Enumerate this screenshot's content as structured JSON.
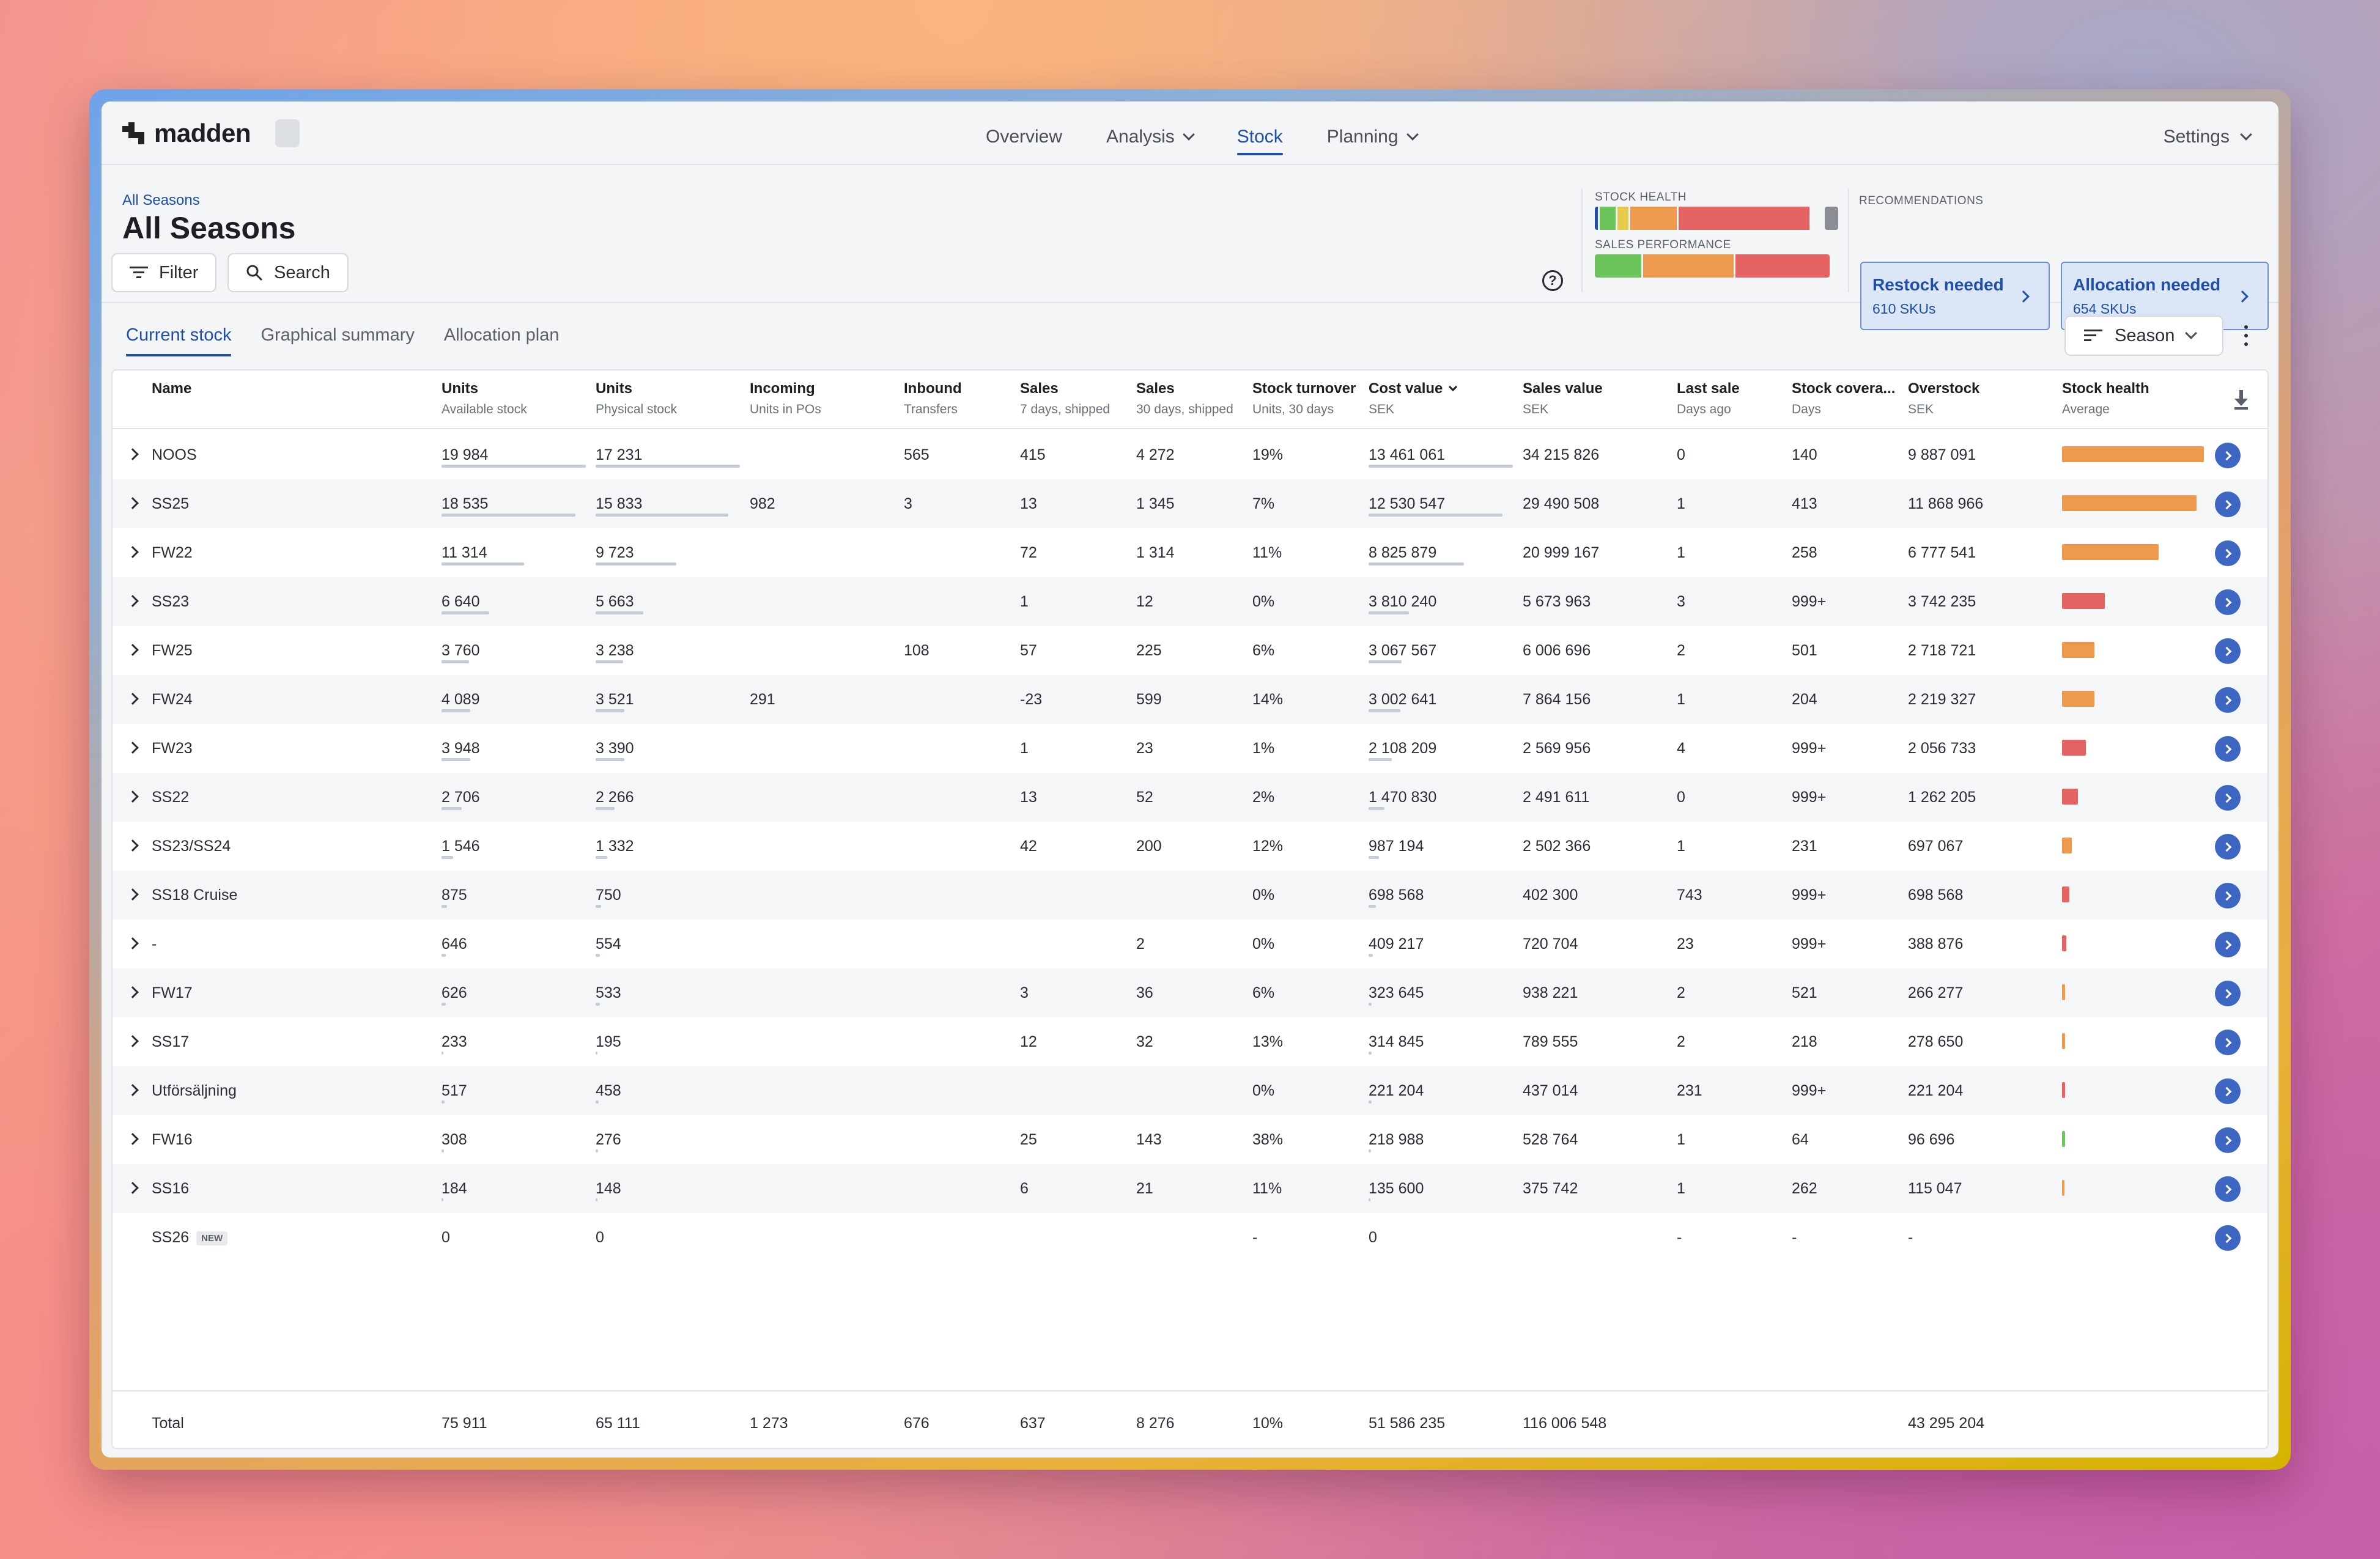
{
  "app": {
    "logo": "madden",
    "nav": [
      {
        "label": "Overview",
        "active": false,
        "dropdown": false
      },
      {
        "label": "Analysis",
        "active": false,
        "dropdown": true
      },
      {
        "label": "Stock",
        "active": true,
        "dropdown": false
      },
      {
        "label": "Planning",
        "active": false,
        "dropdown": true
      }
    ],
    "settings_label": "Settings"
  },
  "header": {
    "breadcrumb": "All Seasons",
    "title": "All Seasons",
    "filter_label": "Filter",
    "search_label": "Search",
    "stock_health_label": "STOCK HEALTH",
    "sales_performance_label": "SALES PERFORMANCE",
    "recommendations_label": "RECOMMENDATIONS",
    "recommendations": [
      {
        "title": "Restock needed",
        "subtitle": "610 SKUs"
      },
      {
        "title": "Allocation needed",
        "subtitle": "654 SKUs"
      }
    ]
  },
  "colors": {
    "accent": "#1f4fa8",
    "green": "#6cc55a",
    "orange": "#ee9a4e",
    "red": "#e66363",
    "yellow": "#e6c84a",
    "grey": "#8a8e94"
  },
  "tabs": [
    {
      "label": "Current stock",
      "active": true
    },
    {
      "label": "Graphical summary",
      "active": false
    },
    {
      "label": "Allocation plan",
      "active": false
    }
  ],
  "sort_label": "Season",
  "table": {
    "columns": [
      {
        "title": "Name",
        "sub": ""
      },
      {
        "title": "Units",
        "sub": "Available stock"
      },
      {
        "title": "Units",
        "sub": "Physical stock"
      },
      {
        "title": "Incoming",
        "sub": "Units in POs"
      },
      {
        "title": "Inbound",
        "sub": "Transfers"
      },
      {
        "title": "Sales",
        "sub": "7 days, shipped"
      },
      {
        "title": "Sales",
        "sub": "30 days, shipped"
      },
      {
        "title": "Stock turnover",
        "sub": "Units, 30 days"
      },
      {
        "title": "Cost value",
        "sub": "SEK"
      },
      {
        "title": "Sales value",
        "sub": "SEK"
      },
      {
        "title": "Last sale",
        "sub": "Days ago"
      },
      {
        "title": "Stock covera...",
        "sub": "Days"
      },
      {
        "title": "Overstock",
        "sub": "SEK"
      },
      {
        "title": "Stock health",
        "sub": "Average"
      }
    ],
    "rows": [
      {
        "name": "NOOS",
        "available": "19 984",
        "physical": "17 231",
        "incoming": "",
        "inbound": "565",
        "sales7": "415",
        "sales30": "4 272",
        "turnover": "19%",
        "cost": "13 461 061",
        "salesval": "34 215 826",
        "lastsale": "0",
        "coverage": "140",
        "overstock": "9 887 091",
        "health_color": "orange",
        "health_level": 1.0,
        "avail_frac": 1.0,
        "phys_frac": 1.0,
        "cost_frac": 1.0,
        "expandable": true
      },
      {
        "name": "SS25",
        "available": "18 535",
        "physical": "15 833",
        "incoming": "982",
        "inbound": "3",
        "sales7": "13",
        "sales30": "1 345",
        "turnover": "7%",
        "cost": "12 530 547",
        "salesval": "29 490 508",
        "lastsale": "1",
        "coverage": "413",
        "overstock": "11 868 966",
        "health_color": "orange",
        "health_level": 0.95,
        "avail_frac": 0.93,
        "phys_frac": 0.92,
        "cost_frac": 0.93,
        "expandable": true
      },
      {
        "name": "FW22",
        "available": "11 314",
        "physical": "9 723",
        "incoming": "",
        "inbound": "",
        "sales7": "72",
        "sales30": "1 314",
        "turnover": "11%",
        "cost": "8 825 879",
        "salesval": "20 999 167",
        "lastsale": "1",
        "coverage": "258",
        "overstock": "6 777 541",
        "health_color": "orange",
        "health_level": 0.68,
        "avail_frac": 0.57,
        "phys_frac": 0.56,
        "cost_frac": 0.66,
        "expandable": true
      },
      {
        "name": "SS23",
        "available": "6 640",
        "physical": "5 663",
        "incoming": "",
        "inbound": "",
        "sales7": "1",
        "sales30": "12",
        "turnover": "0%",
        "cost": "3 810 240",
        "salesval": "5 673 963",
        "lastsale": "3",
        "coverage": "999+",
        "overstock": "3 742 235",
        "health_color": "red",
        "health_level": 0.3,
        "avail_frac": 0.33,
        "phys_frac": 0.33,
        "cost_frac": 0.28,
        "expandable": true
      },
      {
        "name": "FW25",
        "available": "3 760",
        "physical": "3 238",
        "incoming": "",
        "inbound": "108",
        "sales7": "57",
        "sales30": "225",
        "turnover": "6%",
        "cost": "3 067 567",
        "salesval": "6 006 696",
        "lastsale": "2",
        "coverage": "501",
        "overstock": "2 718 721",
        "health_color": "orange",
        "health_level": 0.23,
        "avail_frac": 0.19,
        "phys_frac": 0.19,
        "cost_frac": 0.23,
        "expandable": true
      },
      {
        "name": "FW24",
        "available": "4 089",
        "physical": "3 521",
        "incoming": "291",
        "inbound": "",
        "sales7": "-23",
        "sales30": "599",
        "turnover": "14%",
        "cost": "3 002 641",
        "salesval": "7 864 156",
        "lastsale": "1",
        "coverage": "204",
        "overstock": "2 219 327",
        "health_color": "orange",
        "health_level": 0.23,
        "avail_frac": 0.2,
        "phys_frac": 0.2,
        "cost_frac": 0.22,
        "expandable": true
      },
      {
        "name": "FW23",
        "available": "3 948",
        "physical": "3 390",
        "incoming": "",
        "inbound": "",
        "sales7": "1",
        "sales30": "23",
        "turnover": "1%",
        "cost": "2 108 209",
        "salesval": "2 569 956",
        "lastsale": "4",
        "coverage": "999+",
        "overstock": "2 056 733",
        "health_color": "red",
        "health_level": 0.17,
        "avail_frac": 0.2,
        "phys_frac": 0.2,
        "cost_frac": 0.16,
        "expandable": true
      },
      {
        "name": "SS22",
        "available": "2 706",
        "physical": "2 266",
        "incoming": "",
        "inbound": "",
        "sales7": "13",
        "sales30": "52",
        "turnover": "2%",
        "cost": "1 470 830",
        "salesval": "2 491 611",
        "lastsale": "0",
        "coverage": "999+",
        "overstock": "1 262 205",
        "health_color": "red",
        "health_level": 0.11,
        "avail_frac": 0.14,
        "phys_frac": 0.13,
        "cost_frac": 0.11,
        "expandable": true
      },
      {
        "name": "SS23/SS24",
        "available": "1 546",
        "physical": "1 332",
        "incoming": "",
        "inbound": "",
        "sales7": "42",
        "sales30": "200",
        "turnover": "12%",
        "cost": "987 194",
        "salesval": "2 502 366",
        "lastsale": "1",
        "coverage": "231",
        "overstock": "697 067",
        "health_color": "orange",
        "health_level": 0.07,
        "avail_frac": 0.08,
        "phys_frac": 0.08,
        "cost_frac": 0.07,
        "expandable": true
      },
      {
        "name": "SS18 Cruise",
        "available": "875",
        "physical": "750",
        "incoming": "",
        "inbound": "",
        "sales7": "",
        "sales30": "",
        "turnover": "0%",
        "cost": "698 568",
        "salesval": "402 300",
        "lastsale": "743",
        "coverage": "999+",
        "overstock": "698 568",
        "health_color": "red",
        "health_level": 0.05,
        "avail_frac": 0.04,
        "phys_frac": 0.04,
        "cost_frac": 0.05,
        "expandable": true
      },
      {
        "name": "-",
        "available": "646",
        "physical": "554",
        "incoming": "",
        "inbound": "",
        "sales7": "",
        "sales30": "2",
        "turnover": "0%",
        "cost": "409 217",
        "salesval": "720 704",
        "lastsale": "23",
        "coverage": "999+",
        "overstock": "388 876",
        "health_color": "red",
        "health_level": 0.03,
        "avail_frac": 0.03,
        "phys_frac": 0.03,
        "cost_frac": 0.03,
        "expandable": true
      },
      {
        "name": "FW17",
        "available": "626",
        "physical": "533",
        "incoming": "",
        "inbound": "",
        "sales7": "3",
        "sales30": "36",
        "turnover": "6%",
        "cost": "323 645",
        "salesval": "938 221",
        "lastsale": "2",
        "coverage": "521",
        "overstock": "266 277",
        "health_color": "orange",
        "health_level": 0.02,
        "avail_frac": 0.03,
        "phys_frac": 0.03,
        "cost_frac": 0.02,
        "expandable": true
      },
      {
        "name": "SS17",
        "available": "233",
        "physical": "195",
        "incoming": "",
        "inbound": "",
        "sales7": "12",
        "sales30": "32",
        "turnover": "13%",
        "cost": "314 845",
        "salesval": "789 555",
        "lastsale": "2",
        "coverage": "218",
        "overstock": "278 650",
        "health_color": "orange",
        "health_level": 0.02,
        "avail_frac": 0.01,
        "phys_frac": 0.01,
        "cost_frac": 0.02,
        "expandable": true
      },
      {
        "name": "Utförsäljning",
        "available": "517",
        "physical": "458",
        "incoming": "",
        "inbound": "",
        "sales7": "",
        "sales30": "",
        "turnover": "0%",
        "cost": "221 204",
        "salesval": "437 014",
        "lastsale": "231",
        "coverage": "999+",
        "overstock": "221 204",
        "health_color": "red",
        "health_level": 0.02,
        "avail_frac": 0.02,
        "phys_frac": 0.02,
        "cost_frac": 0.02,
        "expandable": true
      },
      {
        "name": "FW16",
        "available": "308",
        "physical": "276",
        "incoming": "",
        "inbound": "",
        "sales7": "25",
        "sales30": "143",
        "turnover": "38%",
        "cost": "218 988",
        "salesval": "528 764",
        "lastsale": "1",
        "coverage": "64",
        "overstock": "96 696",
        "health_color": "green",
        "health_level": 0.02,
        "avail_frac": 0.015,
        "phys_frac": 0.015,
        "cost_frac": 0.015,
        "expandable": true
      },
      {
        "name": "SS16",
        "available": "184",
        "physical": "148",
        "incoming": "",
        "inbound": "",
        "sales7": "6",
        "sales30": "21",
        "turnover": "11%",
        "cost": "135 600",
        "salesval": "375 742",
        "lastsale": "1",
        "coverage": "262",
        "overstock": "115 047",
        "health_color": "orange",
        "health_level": 0.01,
        "avail_frac": 0.01,
        "phys_frac": 0.01,
        "cost_frac": 0.01,
        "expandable": true
      },
      {
        "name": "SS26",
        "badge": "NEW",
        "available": "0",
        "physical": "0",
        "incoming": "",
        "inbound": "",
        "sales7": "",
        "sales30": "",
        "turnover": "-",
        "cost": "0",
        "salesval": "",
        "lastsale": "-",
        "coverage": "-",
        "overstock": "-",
        "health_color": "none",
        "health_level": 0,
        "avail_frac": 0,
        "phys_frac": 0,
        "cost_frac": 0,
        "expandable": false
      }
    ],
    "total": {
      "label": "Total",
      "available": "75 911",
      "physical": "65 111",
      "incoming": "1 273",
      "inbound": "676",
      "sales7": "637",
      "sales30": "8 276",
      "turnover": "10%",
      "cost": "51 586 235",
      "salesval": "116 006 548",
      "overstock": "43 295 204"
    }
  }
}
